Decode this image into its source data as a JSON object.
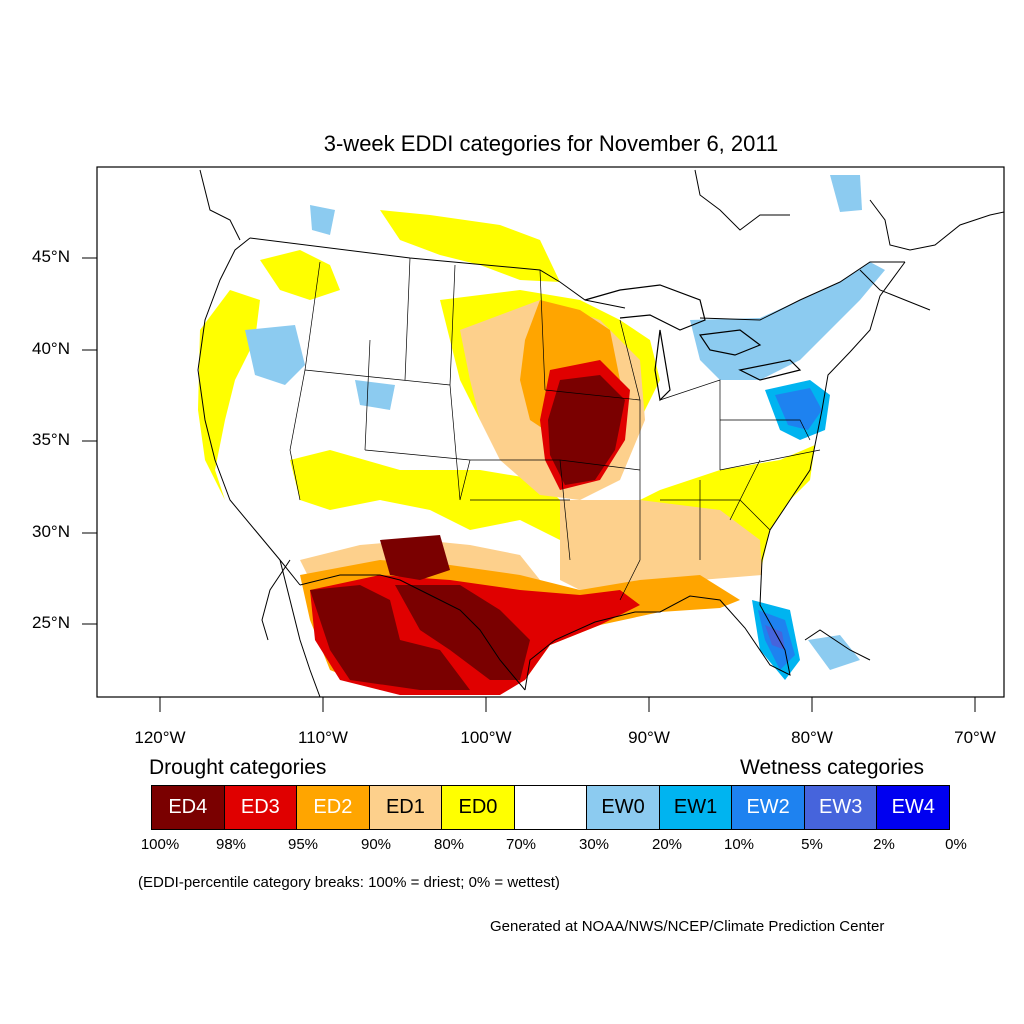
{
  "title": "3-week EDDI categories for November 6, 2011",
  "lat_labels": [
    "45°N",
    "40°N",
    "35°N",
    "30°N",
    "25°N"
  ],
  "lon_labels": [
    "120°W",
    "110°W",
    "100°W",
    "90°W",
    "80°W",
    "70°W"
  ],
  "legend": {
    "drought_heading": "Drought categories",
    "wetness_heading": "Wetness categories",
    "categories": [
      {
        "label": "ED4",
        "color": "#7a0000",
        "text_color": "#ffffff"
      },
      {
        "label": "ED3",
        "color": "#e00000",
        "text_color": "#ffffff"
      },
      {
        "label": "ED2",
        "color": "#ffa500",
        "text_color": "#ffffff"
      },
      {
        "label": "ED1",
        "color": "#fdd08c",
        "text_color": "#000000"
      },
      {
        "label": "ED0",
        "color": "#ffff00",
        "text_color": "#000000"
      },
      {
        "label": "",
        "color": "#ffffff",
        "text_color": "#000000"
      },
      {
        "label": "EW0",
        "color": "#8ccbf0",
        "text_color": "#000000"
      },
      {
        "label": "EW1",
        "color": "#00b4f0",
        "text_color": "#000000"
      },
      {
        "label": "EW2",
        "color": "#1e82f0",
        "text_color": "#ffffff"
      },
      {
        "label": "EW3",
        "color": "#4664dc",
        "text_color": "#ffffff"
      },
      {
        "label": "EW4",
        "color": "#0000f0",
        "text_color": "#ffffff"
      }
    ],
    "breaks": [
      "100%",
      "98%",
      "95%",
      "90%",
      "80%",
      "70%",
      "30%",
      "20%",
      "10%",
      "5%",
      "2%",
      "0%"
    ]
  },
  "note": "(EDDI-percentile category breaks: 100% = driest; 0% = wettest)",
  "credit": "Generated at NOAA/NWS/NCEP/Climate Prediction Center"
}
